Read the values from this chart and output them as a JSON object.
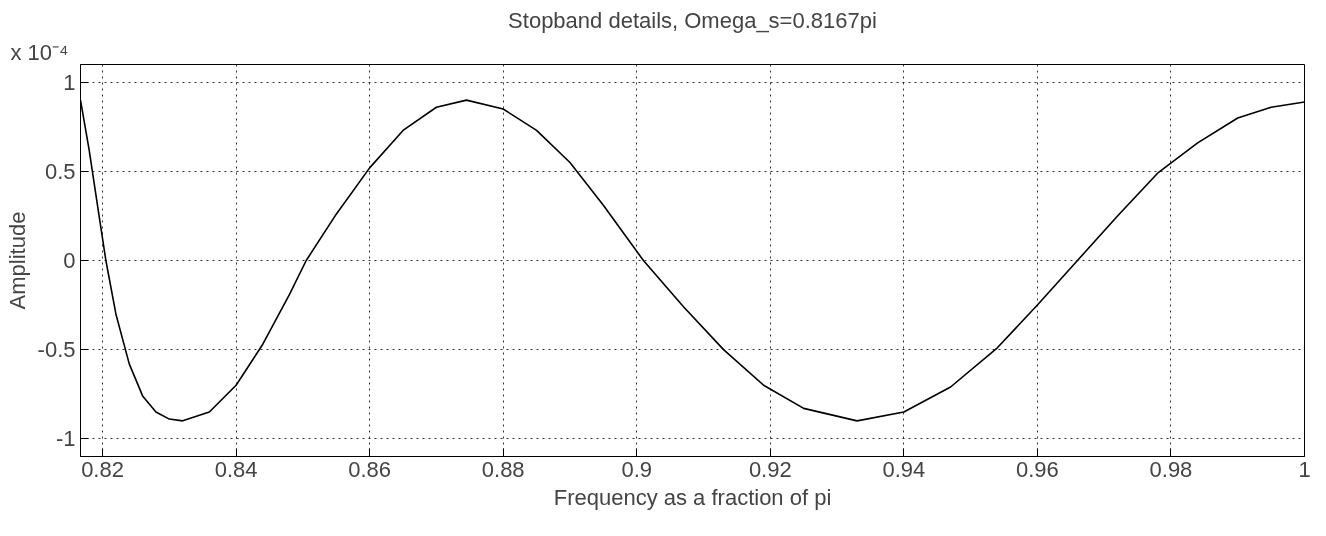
{
  "chart_data": {
    "type": "line",
    "title": "Stopband details, Omega_s=0.8167pi",
    "xlabel": "Frequency as a fraction of pi",
    "ylabel": "Amplitude",
    "annotations": [
      "x 10⁻⁴"
    ],
    "series": [
      {
        "color": "#000000",
        "x": [
          0.8167,
          0.818,
          0.8192,
          0.8205,
          0.822,
          0.824,
          0.826,
          0.828,
          0.83,
          0.832,
          0.836,
          0.84,
          0.844,
          0.848,
          0.8505,
          0.855,
          0.86,
          0.865,
          0.87,
          0.8745,
          0.88,
          0.885,
          0.89,
          0.895,
          0.901,
          0.907,
          0.913,
          0.919,
          0.925,
          0.933,
          0.94,
          0.947,
          0.954,
          0.96,
          0.966,
          0.972,
          0.978,
          0.984,
          0.99,
          0.995,
          1.0
        ],
        "values": [
          0.9,
          0.62,
          0.32,
          0.0,
          -0.3,
          -0.58,
          -0.76,
          -0.85,
          -0.89,
          -0.9,
          -0.85,
          -0.7,
          -0.47,
          -0.19,
          0.0,
          0.26,
          0.52,
          0.73,
          0.86,
          0.9,
          0.85,
          0.73,
          0.55,
          0.31,
          0.0,
          -0.26,
          -0.5,
          -0.7,
          -0.83,
          -0.9,
          -0.85,
          -0.71,
          -0.49,
          -0.25,
          0.0,
          0.25,
          0.49,
          0.66,
          0.8,
          0.86,
          0.89
        ]
      }
    ],
    "xlim": [
      0.8167,
      1.0
    ],
    "ylim": [
      -1.1,
      1.1
    ],
    "xticks": [
      0.82,
      0.84,
      0.86,
      0.88,
      0.9,
      0.92,
      0.94,
      0.96,
      0.98,
      1
    ],
    "yticks": [
      -1,
      -0.5,
      0,
      0.5,
      1
    ],
    "grid": true,
    "marker": "none",
    "line_style": "solid"
  }
}
